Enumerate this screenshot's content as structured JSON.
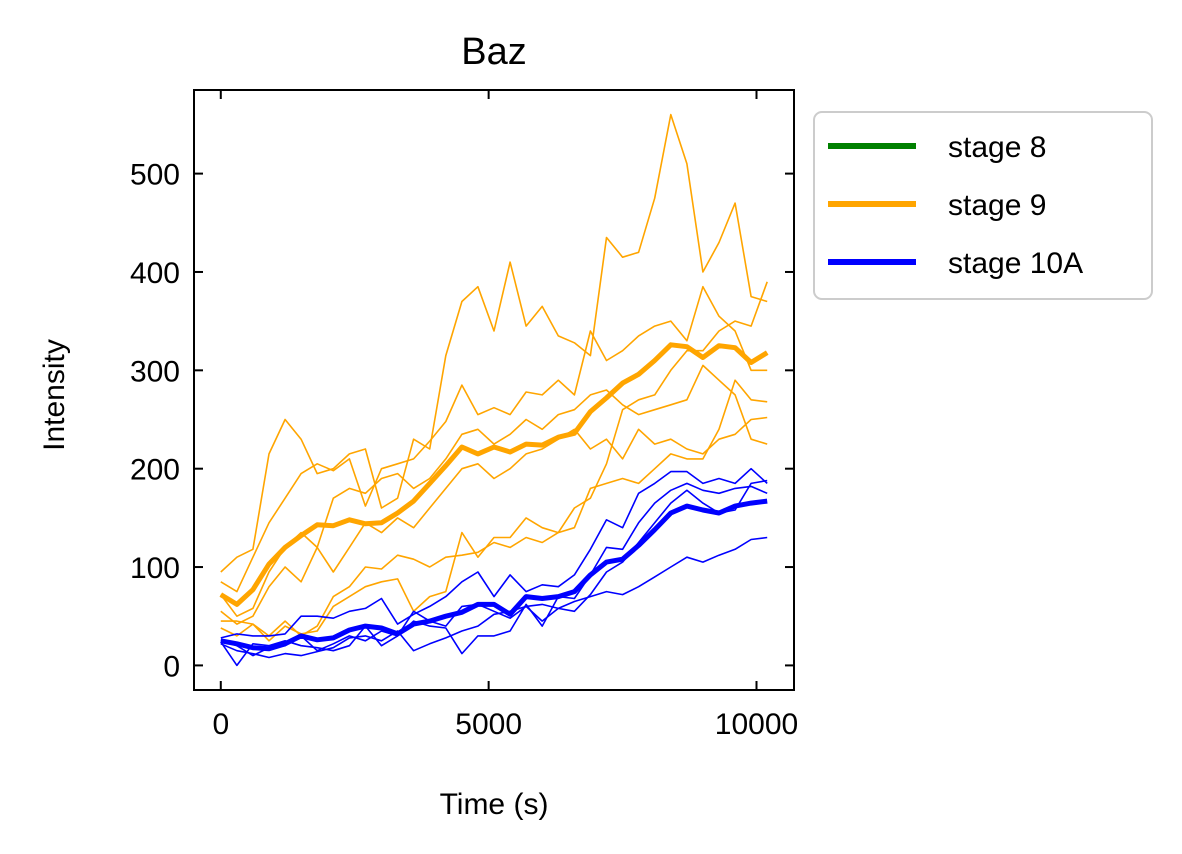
{
  "chart_data": {
    "type": "line",
    "title": "Baz",
    "xlabel": "Time (s)",
    "ylabel": "Intensity",
    "xlim": [
      -500,
      10700
    ],
    "ylim": [
      -25,
      585
    ],
    "xticks": [
      0,
      5000,
      10000
    ],
    "xtick_labels": [
      "0",
      "5000",
      "10000"
    ],
    "yticks": [
      0,
      100,
      200,
      300,
      400,
      500
    ],
    "ytick_labels": [
      "0",
      "100",
      "200",
      "300",
      "400",
      "500"
    ],
    "grid": false,
    "legend_placement": "outside-right-top",
    "legend": [
      {
        "label": "stage 8",
        "color": "#008000"
      },
      {
        "label": "stage 9",
        "color": "#FFA500"
      },
      {
        "label": "stage 10A",
        "color": "#0000FF"
      }
    ],
    "x": [
      0,
      300,
      600,
      900,
      1200,
      1500,
      1800,
      2100,
      2400,
      2700,
      3000,
      3300,
      3600,
      3900,
      4200,
      4500,
      4800,
      5100,
      5400,
      5700,
      6000,
      6300,
      6600,
      6900,
      7200,
      7500,
      7800,
      8100,
      8400,
      8700,
      9000,
      9300,
      9600,
      9900,
      10200
    ],
    "series": [
      {
        "group": "stage 9",
        "kind": "mean",
        "color": "#FFA500",
        "values": [
          72,
          62,
          77,
          103,
          120,
          132,
          143,
          142,
          148,
          144,
          145,
          155,
          167,
          185,
          203,
          222,
          215,
          222,
          217,
          225,
          224,
          232,
          236,
          258,
          272,
          287,
          296,
          310,
          326,
          324,
          313,
          325,
          323,
          308,
          318
        ]
      },
      {
        "group": "stage 9",
        "kind": "replicate",
        "color": "#FFA500",
        "values": [
          95,
          110,
          118,
          215,
          250,
          230,
          195,
          200,
          215,
          220,
          160,
          170,
          230,
          220,
          315,
          370,
          385,
          340,
          410,
          345,
          365,
          335,
          328,
          315,
          435,
          415,
          420,
          475,
          560,
          510,
          400,
          430,
          470,
          375,
          370
        ]
      },
      {
        "group": "stage 9",
        "kind": "replicate",
        "color": "#FFA500",
        "values": [
          85,
          75,
          110,
          145,
          170,
          195,
          205,
          198,
          210,
          162,
          200,
          205,
          210,
          228,
          248,
          285,
          255,
          262,
          255,
          278,
          275,
          290,
          275,
          340,
          310,
          320,
          335,
          345,
          350,
          330,
          385,
          355,
          340,
          300,
          300
        ]
      },
      {
        "group": "stage 9",
        "kind": "replicate",
        "color": "#FFA500",
        "values": [
          72,
          50,
          58,
          95,
          120,
          135,
          120,
          170,
          180,
          175,
          190,
          195,
          180,
          190,
          210,
          235,
          240,
          225,
          235,
          250,
          240,
          255,
          260,
          275,
          280,
          265,
          255,
          260,
          265,
          270,
          305,
          290,
          275,
          230,
          225
        ]
      },
      {
        "group": "stage 9",
        "kind": "replicate",
        "color": "#FFA500",
        "values": [
          55,
          42,
          50,
          80,
          100,
          85,
          120,
          95,
          120,
          145,
          135,
          150,
          140,
          160,
          180,
          200,
          205,
          190,
          200,
          215,
          220,
          230,
          240,
          220,
          230,
          210,
          240,
          225,
          230,
          220,
          215,
          230,
          235,
          250,
          252
        ]
      },
      {
        "group": "stage 9",
        "kind": "replicate",
        "color": "#FFA500",
        "values": [
          45,
          45,
          42,
          30,
          45,
          30,
          40,
          70,
          80,
          100,
          98,
          112,
          108,
          100,
          110,
          112,
          115,
          125,
          120,
          130,
          125,
          135,
          140,
          180,
          185,
          190,
          185,
          200,
          215,
          210,
          210,
          240,
          290,
          270,
          268
        ]
      },
      {
        "group": "stage 9",
        "kind": "replicate",
        "color": "#FFA500",
        "values": [
          38,
          30,
          42,
          25,
          40,
          32,
          35,
          60,
          70,
          80,
          85,
          88,
          55,
          70,
          75,
          135,
          110,
          130,
          130,
          150,
          140,
          135,
          160,
          170,
          205,
          260,
          270,
          275,
          300,
          320,
          320,
          340,
          350,
          345,
          390
        ]
      },
      {
        "group": "stage 10A",
        "kind": "mean",
        "color": "#0000FF",
        "values": [
          25,
          22,
          18,
          17,
          22,
          30,
          26,
          28,
          36,
          40,
          38,
          32,
          42,
          45,
          50,
          54,
          62,
          62,
          52,
          70,
          68,
          70,
          75,
          92,
          105,
          108,
          122,
          138,
          155,
          162,
          158,
          155,
          162,
          165,
          167
        ]
      },
      {
        "group": "stage 10A",
        "kind": "replicate",
        "color": "#0000FF",
        "values": [
          28,
          32,
          30,
          30,
          32,
          50,
          50,
          48,
          55,
          58,
          68,
          42,
          52,
          60,
          70,
          85,
          95,
          70,
          92,
          75,
          82,
          80,
          92,
          118,
          148,
          140,
          175,
          185,
          197,
          197,
          185,
          190,
          185,
          200,
          185
        ]
      },
      {
        "group": "stage 10A",
        "kind": "replicate",
        "color": "#0000FF",
        "values": [
          22,
          15,
          12,
          8,
          12,
          10,
          14,
          18,
          28,
          30,
          25,
          35,
          15,
          22,
          28,
          35,
          40,
          52,
          55,
          60,
          62,
          58,
          65,
          70,
          75,
          72,
          80,
          90,
          100,
          110,
          105,
          112,
          118,
          128,
          130
        ]
      },
      {
        "group": "stage 10A",
        "kind": "replicate",
        "color": "#0000FF",
        "values": [
          24,
          0,
          22,
          20,
          25,
          20,
          18,
          15,
          20,
          40,
          20,
          30,
          55,
          45,
          40,
          60,
          62,
          55,
          48,
          60,
          45,
          58,
          55,
          72,
          95,
          105,
          125,
          145,
          165,
          178,
          165,
          155,
          158,
          185,
          188
        ]
      },
      {
        "group": "stage 10A",
        "kind": "replicate",
        "color": "#0000FF",
        "values": [
          26,
          20,
          10,
          18,
          20,
          30,
          15,
          22,
          30,
          25,
          35,
          30,
          45,
          40,
          38,
          12,
          30,
          30,
          35,
          62,
          40,
          70,
          68,
          92,
          120,
          118,
          145,
          165,
          178,
          185,
          178,
          175,
          180,
          182,
          175
        ]
      }
    ]
  }
}
